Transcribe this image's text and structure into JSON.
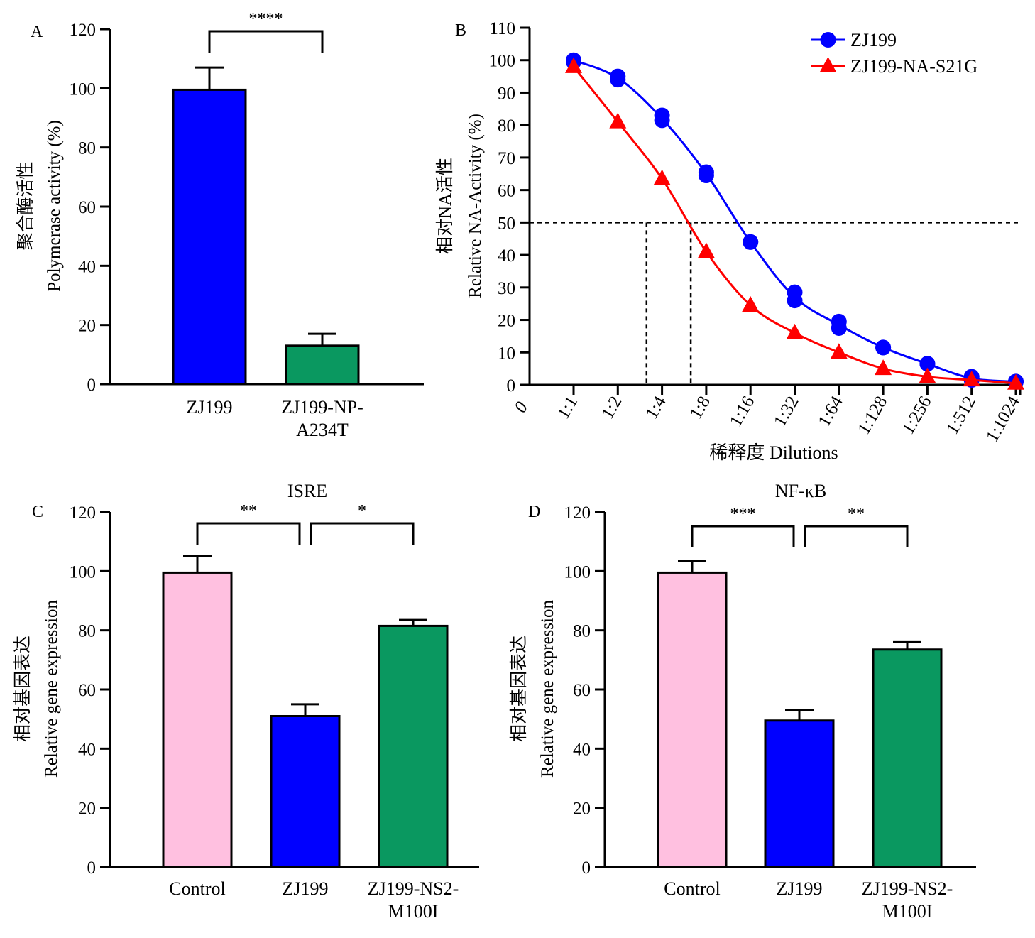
{
  "colors": {
    "blue": "#0000ff",
    "green": "#0a9860",
    "pink": "#ffc0e0",
    "red": "#ff0000"
  },
  "chart_data": [
    {
      "panel": "A",
      "type": "bar",
      "title": "",
      "ylabel_line1": "聚合酶活性",
      "ylabel_line2": "Polymerase activity (%)",
      "ylim": [
        0,
        120
      ],
      "yticks": [
        "0",
        "20",
        "40",
        "60",
        "80",
        "100",
        "120"
      ],
      "categories": [
        [
          "ZJ199"
        ],
        [
          "ZJ199-NP-",
          "A234T"
        ]
      ],
      "values": [
        99.5,
        13
      ],
      "errors": [
        7.5,
        4
      ],
      "bar_colors": [
        "#0000ff",
        "#0a9860"
      ],
      "significance": [
        {
          "from": 0,
          "to": 1,
          "label": "****"
        }
      ]
    },
    {
      "panel": "B",
      "type": "line",
      "title": "",
      "xlabel": "稀释度 Dilutions",
      "ylabel_line1": "相对NA活性",
      "ylabel_line2": "Relative NA-Activity (%)",
      "ylim": [
        0,
        110
      ],
      "yticks": [
        "0",
        "10",
        "20",
        "30",
        "40",
        "50",
        "60",
        "70",
        "80",
        "90",
        "100",
        "110"
      ],
      "x_origin_label": "0",
      "categories": [
        "1:1",
        "1:2",
        "1:4",
        "1:8",
        "1:16",
        "1:32",
        "1:64",
        "1:128",
        "1:256",
        "1:512",
        "1:1024"
      ],
      "legend_position": "top-right",
      "series": [
        {
          "name": "ZJ199",
          "marker": "circle",
          "color": "#0000ff",
          "values": [
            100,
            94.5,
            82,
            65,
            44,
            27,
            18.5,
            11.5,
            6.5,
            2,
            1
          ],
          "replicates": [
            [
              100,
              99.5
            ],
            [
              94,
              95
            ],
            [
              81.5,
              83
            ],
            [
              64.5,
              65.5
            ],
            [
              44,
              44
            ],
            [
              26,
              28.5
            ],
            [
              17.5,
              19.5
            ],
            [
              11.5,
              11.5
            ],
            [
              6.5,
              6.5
            ],
            [
              1.5,
              2.5
            ],
            [
              1,
              1
            ]
          ]
        },
        {
          "name": "ZJ199-NA-S21G",
          "marker": "triangle",
          "color": "#ff0000",
          "values": [
            98,
            81,
            63.5,
            41,
            24.5,
            16,
            10,
            5,
            2.5,
            1.5,
            0.5
          ]
        }
      ],
      "reference_line_y": 50,
      "reference_drop_x": [
        1.65,
        2.65
      ]
    },
    {
      "panel": "C",
      "type": "bar",
      "title": "ISRE",
      "ylabel_line1": "相对基因表达",
      "ylabel_line2": "Relative gene expression",
      "ylim": [
        0,
        120
      ],
      "yticks": [
        "0",
        "20",
        "40",
        "60",
        "80",
        "100",
        "120"
      ],
      "categories": [
        [
          "Control"
        ],
        [
          "ZJ199"
        ],
        [
          "ZJ199-NS2-",
          "M100I"
        ]
      ],
      "values": [
        99.5,
        51,
        81.5
      ],
      "errors": [
        5.5,
        4,
        2
      ],
      "bar_colors": [
        "#ffc0e0",
        "#0000ff",
        "#0a9860"
      ],
      "significance": [
        {
          "from": 0,
          "to": 1,
          "label": "**"
        },
        {
          "from": 1,
          "to": 2,
          "label": "*"
        }
      ]
    },
    {
      "panel": "D",
      "type": "bar",
      "title": "NF-κB",
      "ylabel_line1": "相对基因表达",
      "ylabel_line2": "Relative gene expression",
      "ylim": [
        0,
        120
      ],
      "yticks": [
        "0",
        "20",
        "40",
        "60",
        "80",
        "100",
        "120"
      ],
      "categories": [
        [
          "Control"
        ],
        [
          "ZJ199"
        ],
        [
          "ZJ199-NS2-",
          "M100I"
        ]
      ],
      "values": [
        99.5,
        49.5,
        73.5
      ],
      "errors": [
        4,
        3.5,
        2.5
      ],
      "bar_colors": [
        "#ffc0e0",
        "#0000ff",
        "#0a9860"
      ],
      "significance": [
        {
          "from": 0,
          "to": 1,
          "label": "***"
        },
        {
          "from": 1,
          "to": 2,
          "label": "**"
        }
      ]
    }
  ]
}
